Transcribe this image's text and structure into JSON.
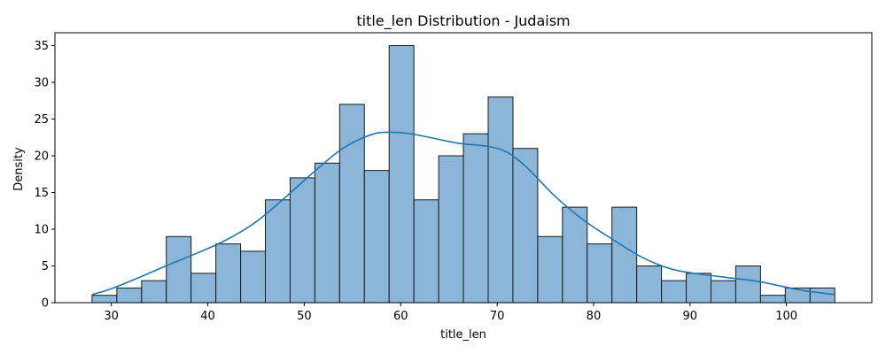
{
  "chart_data": {
    "type": "histogram",
    "title": "title_len Distribution - Judaism",
    "xlabel": "title_len",
    "ylabel": "Density",
    "xlim": [
      24.15,
      108.85
    ],
    "ylim": [
      0,
      36.75
    ],
    "xticks": [
      30,
      40,
      50,
      60,
      70,
      80,
      90,
      100
    ],
    "yticks": [
      0,
      5,
      10,
      15,
      20,
      25,
      30,
      35
    ],
    "bins": {
      "start": 28,
      "width": 2.567,
      "counts": [
        1,
        2,
        3,
        9,
        4,
        8,
        7,
        14,
        17,
        19,
        27,
        18,
        35,
        14,
        20,
        23,
        28,
        21,
        9,
        13,
        8,
        13,
        5,
        3,
        4,
        3,
        5,
        1,
        2,
        2
      ]
    },
    "kde": {
      "x": [
        28,
        30,
        33,
        36,
        39,
        42,
        45,
        48,
        51,
        54,
        57,
        59,
        61,
        63,
        66,
        69,
        71,
        73,
        76,
        79,
        82,
        85,
        88,
        91,
        94,
        97,
        100,
        102,
        105
      ],
      "y": [
        1.1,
        1.9,
        3.5,
        5.2,
        6.8,
        8.6,
        11.0,
        14.3,
        17.8,
        21.0,
        22.9,
        23.2,
        23.0,
        22.5,
        21.7,
        21.3,
        20.5,
        18.5,
        14.5,
        11.2,
        8.6,
        6.2,
        4.6,
        3.9,
        3.4,
        2.9,
        2.1,
        1.6,
        1.1
      ]
    },
    "bar_color": "#8cb6d8",
    "kde_color": "#1f77b4",
    "grid": false,
    "legend": "none"
  }
}
